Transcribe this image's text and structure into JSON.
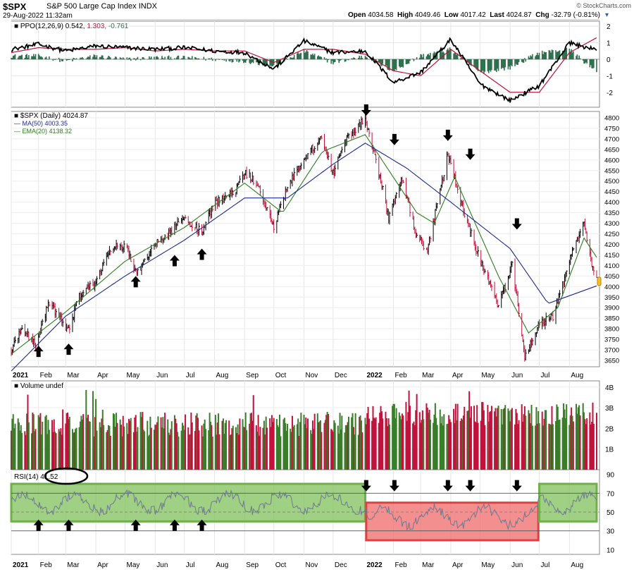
{
  "header": {
    "symbol": "$SPX",
    "name": "S&P 500 Large Cap Index",
    "exchange": "INDX",
    "date": "29-Aug-2022 11:32am",
    "open_label": "Open",
    "open": "4034.58",
    "high_label": "High",
    "high": "4049.46",
    "low_label": "Low",
    "low": "4017.42",
    "last_label": "Last",
    "last": "4024.87",
    "chg_label": "Chg",
    "chg": "-32.79 (-0.81%)",
    "credit": "© StockCharts.com"
  },
  "colors": {
    "up": "#3a7d2a",
    "down": "#c0123a",
    "ma50": "#1c2a8f",
    "ema20": "#2e7d20",
    "ppo_hist": "#2e6f4e",
    "signal": "#c0123a",
    "rsi_line": "#6c7a8f",
    "zone_green": "#7fc05a",
    "zone_red": "#f06a6a",
    "arrow": "#000000"
  },
  "legends": {
    "ppo": "PPO(12,26,9)",
    "ppo_v1": "0.542",
    "ppo_v2": "1.303",
    "ppo_v3": "-0.761",
    "price": "$SPX (Daily) 4024.87",
    "ma50": "MA(50) 4003.35",
    "ema20": "EMA(20) 4138.32",
    "volume": "Volume undef",
    "rsi": "RSI(14) 41.52"
  },
  "chart_data": [
    {
      "type": "line",
      "panel": "PPO",
      "series_name": "PPO(12,26,9)",
      "ylim": [
        -2.9,
        2.3
      ],
      "yticks": [
        2,
        1,
        0,
        -1,
        -2
      ],
      "x_dates": [
        "2021-01-04",
        "2021-02-01",
        "2021-03-01",
        "2021-04-01",
        "2021-05-01",
        "2021-06-01",
        "2021-07-01",
        "2021-08-01",
        "2021-09-01",
        "2021-10-01",
        "2021-11-01",
        "2021-12-01",
        "2022-01-03",
        "2022-02-01",
        "2022-03-01",
        "2022-04-01",
        "2022-05-01",
        "2022-06-01",
        "2022-07-01",
        "2022-08-01",
        "2022-08-29"
      ],
      "ppo": [
        0.6,
        0.9,
        0.5,
        0.8,
        0.7,
        0.6,
        0.7,
        0.5,
        0.4,
        -0.6,
        1.1,
        0.4,
        0.5,
        -1.4,
        -0.8,
        1.2,
        -1.5,
        -2.5,
        -1.6,
        1.0,
        0.54
      ],
      "signal": [
        0.4,
        0.7,
        0.6,
        0.6,
        0.7,
        0.5,
        0.6,
        0.5,
        0.5,
        -0.2,
        0.6,
        0.6,
        0.3,
        -0.7,
        -1.0,
        0.6,
        -0.7,
        -2.0,
        -2.0,
        0.4,
        1.3
      ]
    },
    {
      "type": "line",
      "panel": "Price",
      "series": [
        {
          "name": "$SPX (Daily)",
          "x": [
            "2021-01-04",
            "2021-01-15",
            "2021-01-29",
            "2021-02-12",
            "2021-03-04",
            "2021-03-15",
            "2021-04-01",
            "2021-04-15",
            "2021-05-03",
            "2021-05-12",
            "2021-06-01",
            "2021-06-15",
            "2021-07-01",
            "2021-07-19",
            "2021-08-02",
            "2021-08-20",
            "2021-09-02",
            "2021-09-15",
            "2021-10-01",
            "2021-10-04",
            "2021-10-15",
            "2021-11-01",
            "2021-11-19",
            "2021-12-01",
            "2021-12-15",
            "2022-01-03",
            "2022-01-20",
            "2022-01-27",
            "2022-02-10",
            "2022-02-24",
            "2022-03-08",
            "2022-03-29",
            "2022-04-12",
            "2022-04-27",
            "2022-05-20",
            "2022-06-03",
            "2022-06-16",
            "2022-07-01",
            "2022-07-15",
            "2022-08-01",
            "2022-08-16",
            "2022-08-26",
            "2022-08-29"
          ],
          "values": [
            3700,
            3800,
            3720,
            3930,
            3790,
            3960,
            4020,
            4180,
            4190,
            4060,
            4200,
            4250,
            4320,
            4260,
            4400,
            4440,
            4540,
            4480,
            4290,
            4330,
            4470,
            4610,
            4700,
            4540,
            4700,
            4800,
            4480,
            4330,
            4510,
            4250,
            4170,
            4630,
            4390,
            4180,
            3900,
            4110,
            3670,
            3820,
            3860,
            4120,
            4310,
            4060,
            4024.87
          ]
        },
        {
          "name": "MA(50)",
          "x": [
            "2021-01-04",
            "2021-03-01",
            "2021-05-01",
            "2021-07-01",
            "2021-09-01",
            "2021-10-15",
            "2021-12-01",
            "2022-01-03",
            "2022-02-15",
            "2022-04-01",
            "2022-06-01",
            "2022-07-10",
            "2022-08-29"
          ],
          "values": [
            3600,
            3860,
            4050,
            4220,
            4420,
            4420,
            4580,
            4680,
            4560,
            4400,
            4180,
            3920,
            4003.35
          ]
        },
        {
          "name": "EMA(20)",
          "x": [
            "2021-01-04",
            "2021-03-01",
            "2021-05-01",
            "2021-07-01",
            "2021-09-01",
            "2021-10-10",
            "2021-11-20",
            "2022-01-03",
            "2022-02-25",
            "2022-03-15",
            "2022-04-05",
            "2022-05-20",
            "2022-06-20",
            "2022-07-20",
            "2022-08-16",
            "2022-08-29"
          ],
          "values": [
            3680,
            3880,
            4120,
            4280,
            4490,
            4350,
            4640,
            4720,
            4350,
            4300,
            4520,
            4050,
            3780,
            3900,
            4230,
            4138.32
          ]
        }
      ],
      "ylim": [
        3620,
        4830
      ],
      "yticks": [
        4800,
        4750,
        4700,
        4650,
        4600,
        4550,
        4500,
        4450,
        4400,
        4350,
        4300,
        4250,
        4200,
        4150,
        4100,
        4050,
        4000,
        3950,
        3900,
        3850,
        3800,
        3750,
        3700,
        3650
      ],
      "last_marker": 4024.87,
      "arrows_up": [
        "2021-02-01",
        "2021-03-04",
        "2021-05-12",
        "2021-06-21",
        "2021-07-19"
      ],
      "arrows_down": [
        "2022-01-04",
        "2022-02-02",
        "2022-03-29",
        "2022-04-21",
        "2022-06-08"
      ]
    },
    {
      "type": "bar",
      "panel": "Volume",
      "series_name": "Volume",
      "ylim": [
        0,
        4.3
      ],
      "yticks": [
        "4B",
        "3B",
        "2B",
        "1B"
      ],
      "ytick_values": [
        4,
        3,
        2,
        1
      ]
    },
    {
      "type": "line",
      "panel": "RSI",
      "series_name": "RSI(14)",
      "value": 41.52,
      "ylim": [
        5,
        95
      ],
      "yticks": [
        90,
        70,
        50,
        30,
        10
      ],
      "overbought": 70,
      "oversold": 30,
      "mid": 50,
      "zones": [
        {
          "color": "green",
          "from": "2021-01-04",
          "to": "2022-01-03",
          "low": 40,
          "high": 80
        },
        {
          "color": "red",
          "from": "2022-01-04",
          "to": "2022-06-30",
          "low": 20,
          "high": 60
        },
        {
          "color": "green",
          "from": "2022-07-01",
          "to": "2022-08-29",
          "low": 40,
          "high": 80
        }
      ],
      "arrows_up": [
        "2021-02-01",
        "2021-03-04",
        "2021-05-12",
        "2021-06-21",
        "2021-07-19"
      ],
      "arrows_down": [
        "2022-01-04",
        "2022-02-02",
        "2022-03-29",
        "2022-04-21",
        "2022-06-08"
      ]
    }
  ],
  "x_axis": {
    "labels": [
      "2021",
      "Feb",
      "Mar",
      "Apr",
      "May",
      "Jun",
      "Jul",
      "Aug",
      "Sep",
      "Oct",
      "Nov",
      "Dec",
      "2022",
      "Feb",
      "Mar",
      "Apr",
      "May",
      "Jun",
      "Jul",
      "Aug"
    ],
    "dates": [
      "2021-01-04",
      "2021-02-01",
      "2021-03-01",
      "2021-04-01",
      "2021-05-01",
      "2021-06-01",
      "2021-07-01",
      "2021-08-01",
      "2021-09-01",
      "2021-10-01",
      "2021-11-01",
      "2021-12-01",
      "2022-01-03",
      "2022-02-01",
      "2022-03-01",
      "2022-04-01",
      "2022-05-01",
      "2022-06-01",
      "2022-07-01",
      "2022-08-01"
    ]
  }
}
